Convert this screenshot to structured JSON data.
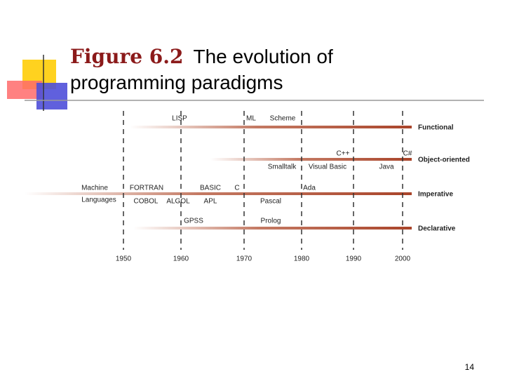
{
  "title": {
    "label": "Figure 6.2",
    "lines": [
      "The evolution of",
      "programming paradigms"
    ]
  },
  "years": [
    "1950",
    "1960",
    "1970",
    "1980",
    "1990",
    "2000"
  ],
  "paradigms": [
    "Functional",
    "Object-oriented",
    "Imperative",
    "Declarative"
  ],
  "languages": [
    "LISP",
    "ML",
    "Scheme",
    "C++",
    "C#",
    "Smalltalk",
    "Visual Basic",
    "Java",
    "Machine",
    "Languages",
    "FORTRAN",
    "BASIC",
    "C",
    "Ada",
    "COBOL",
    "ALGOL",
    "APL",
    "Pascal",
    "GPSS",
    "Prolog"
  ],
  "page_number": "14"
}
